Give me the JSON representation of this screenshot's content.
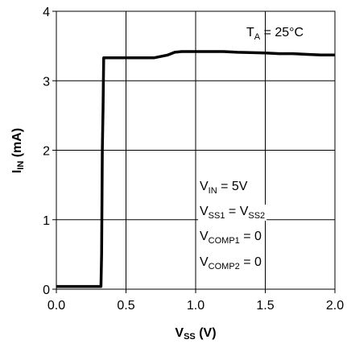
{
  "chart_data": {
    "type": "line",
    "title": "",
    "xlabel": {
      "main": "V",
      "sub": "SS",
      "unit": " (V)"
    },
    "ylabel": {
      "main": "I",
      "sub": "IN",
      "unit": " (mA)"
    },
    "xlim": [
      0,
      2
    ],
    "ylim": [
      0,
      4
    ],
    "xticks": [
      0,
      0.5,
      1,
      1.5,
      2
    ],
    "xtick_labels": [
      "0.0",
      "0.5",
      "1.0",
      "1.5",
      "2.0"
    ],
    "yticks": [
      0,
      1,
      2,
      3,
      4
    ],
    "ytick_labels": [
      "0",
      "1",
      "2",
      "3",
      "4"
    ],
    "grid": true,
    "series": [
      {
        "color": "#000000",
        "x": [
          0,
          0.32,
          0.325,
          0.33,
          0.335,
          0.34,
          0.36,
          0.5,
          0.6,
          0.7,
          0.8,
          0.85,
          0.9,
          1.0,
          1.1,
          1.2,
          1.3,
          1.5,
          1.6,
          1.7,
          1.8,
          1.9,
          2.0
        ],
        "y": [
          0.04,
          0.04,
          0.5,
          2.0,
          2.6,
          3.33,
          3.33,
          3.33,
          3.33,
          3.33,
          3.37,
          3.41,
          3.42,
          3.42,
          3.42,
          3.42,
          3.41,
          3.4,
          3.39,
          3.39,
          3.38,
          3.37,
          3.37
        ]
      }
    ],
    "annotations": {
      "temperature": [
        {
          "t": "T",
          "sub": false
        },
        {
          "t": "A",
          "sub": true
        },
        {
          "t": " = 25°C",
          "sub": false
        }
      ],
      "conditions": [
        [
          {
            "t": "V",
            "sub": false
          },
          {
            "t": "IN",
            "sub": true
          },
          {
            "t": " = 5V",
            "sub": false
          }
        ],
        [
          {
            "t": "V",
            "sub": false
          },
          {
            "t": "SS1",
            "sub": true
          },
          {
            "t": " = V",
            "sub": false
          },
          {
            "t": "SS2",
            "sub": true
          }
        ],
        [
          {
            "t": "V",
            "sub": false
          },
          {
            "t": "COMP1",
            "sub": true
          },
          {
            "t": " = 0",
            "sub": false
          }
        ],
        [
          {
            "t": "V",
            "sub": false
          },
          {
            "t": "COMP2",
            "sub": true
          },
          {
            "t": " = 0",
            "sub": false
          }
        ]
      ]
    }
  }
}
